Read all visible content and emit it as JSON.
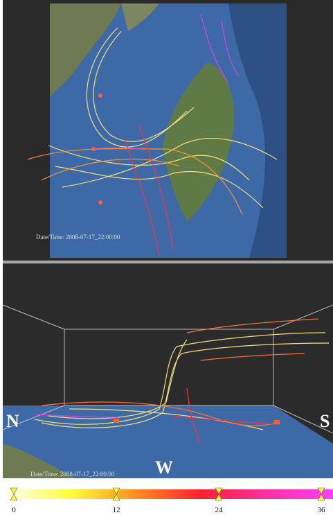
{
  "top_view": {
    "timestamp": "Date/Time: 2008-07-17_22:00:00"
  },
  "side_view": {
    "timestamp": "Date/Time: 2008-07-17_22:00:00",
    "north": "N",
    "south": "S",
    "west": "W"
  },
  "colorbar": {
    "range": [
      0,
      36
    ],
    "ticks": [
      0,
      12,
      24,
      36
    ],
    "colors": [
      "#ffffff",
      "#ffff40",
      "#ff9020",
      "#ff2030",
      "#ff30a0",
      "#ff40ff"
    ]
  }
}
